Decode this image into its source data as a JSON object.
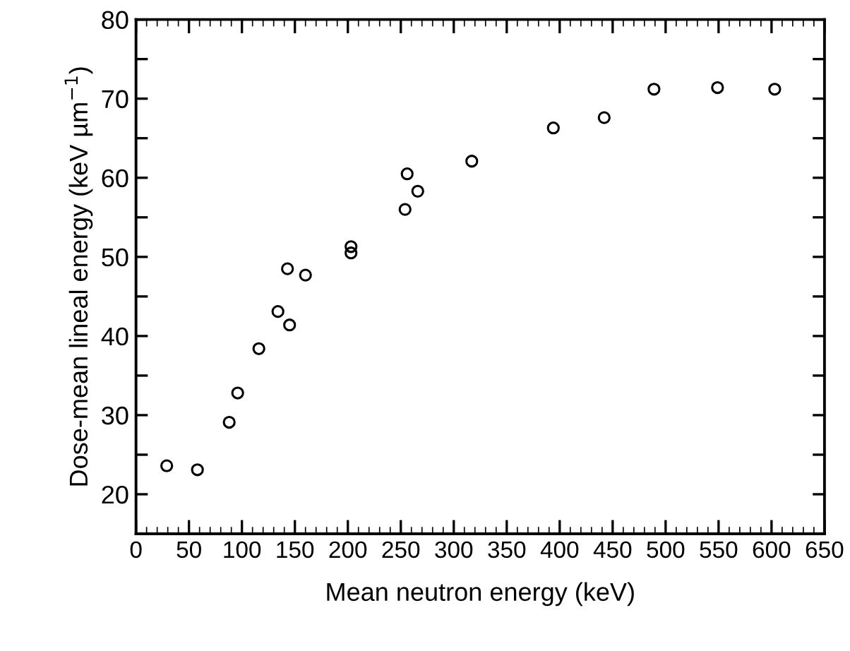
{
  "chart_data": {
    "type": "scatter",
    "xlabel": "Mean neutron energy (keV)",
    "ylabel": "Dose-mean lineal energy (keV µm$^{−1}$)",
    "x": [
      29,
      58,
      88,
      96,
      116,
      134,
      145,
      143,
      160,
      203,
      203,
      254,
      256,
      266,
      317,
      394,
      442,
      489,
      549,
      603
    ],
    "values": [
      23.6,
      23.1,
      29.1,
      32.8,
      38.4,
      43.1,
      41.4,
      48.5,
      47.7,
      51.3,
      50.5,
      56.0,
      60.5,
      58.3,
      62.1,
      66.3,
      67.6,
      71.2,
      71.4,
      71.2
    ],
    "color": "#000000",
    "marker": "circle",
    "grid": false,
    "xlim": [
      0,
      650
    ],
    "xticks": [
      0,
      50,
      100,
      150,
      200,
      250,
      300,
      350,
      400,
      450,
      500,
      550,
      600,
      650
    ],
    "ylim": [
      15,
      80
    ],
    "yticks": [
      {
        "value": 15,
        "label": null
      },
      20,
      {
        "value": 25,
        "label": null
      },
      30,
      {
        "value": 35,
        "label": null
      },
      40,
      {
        "value": 45,
        "label": null
      },
      50,
      {
        "value": 55,
        "label": null
      },
      60,
      {
        "value": 65,
        "label": null
      },
      70,
      {
        "value": 75,
        "label": null
      },
      80
    ]
  }
}
